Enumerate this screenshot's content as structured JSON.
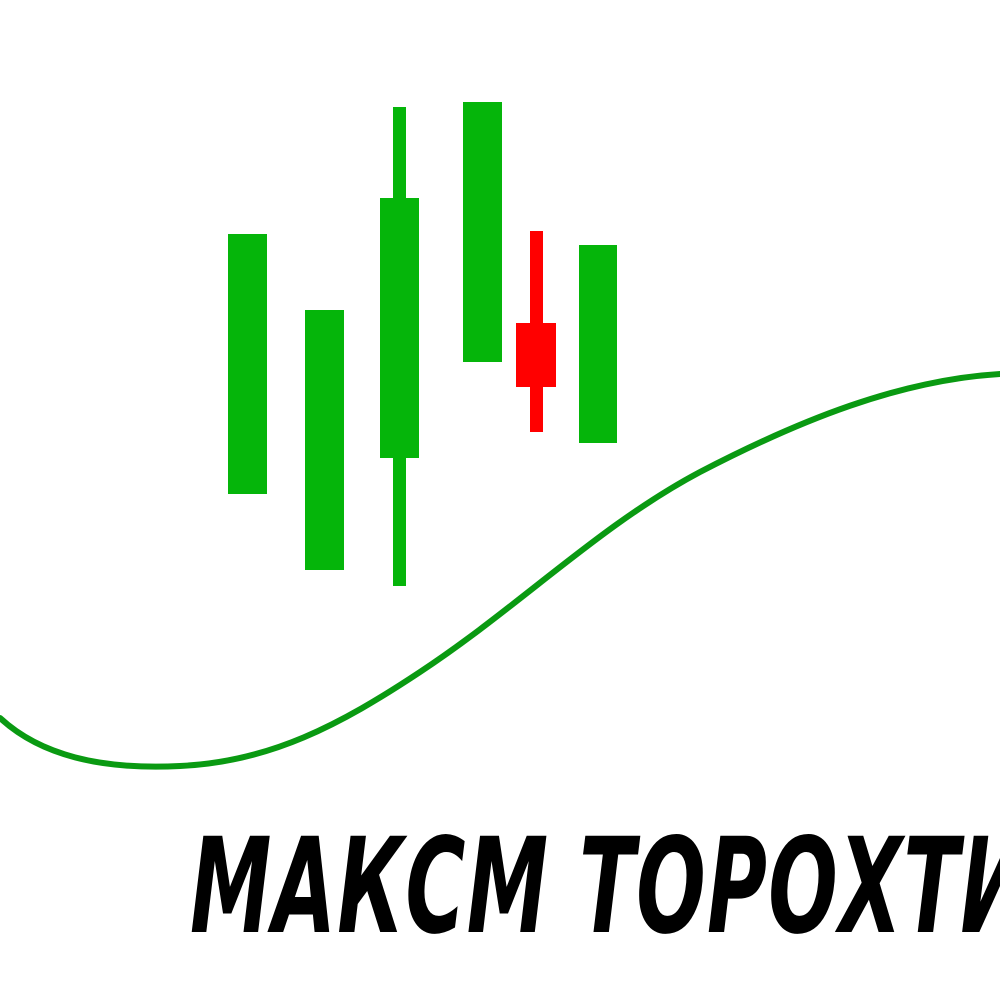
{
  "logo": {
    "text": "МАКСМ ТОРОХТИЙ"
  },
  "colors": {
    "background": "#ffffff",
    "bullish": "#05b50a",
    "bearish": "#ff0000",
    "trend_line": "#0a9a12",
    "text": "#000000"
  },
  "candles": [
    {
      "name": "candle-1",
      "direction": "up",
      "has_wick": false
    },
    {
      "name": "candle-2",
      "direction": "up",
      "has_wick": false
    },
    {
      "name": "candle-3",
      "direction": "up",
      "has_wick": true
    },
    {
      "name": "candle-4",
      "direction": "up",
      "has_wick": false
    },
    {
      "name": "candle-5",
      "direction": "down",
      "has_wick": true
    },
    {
      "name": "candle-6",
      "direction": "up",
      "has_wick": false
    }
  ]
}
